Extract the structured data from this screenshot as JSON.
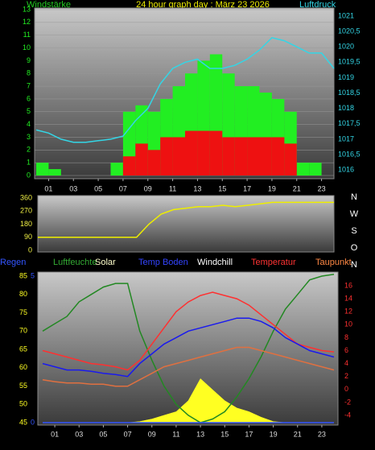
{
  "chart_data": [
    {
      "type": "weather-panel",
      "title": "24 hour graph day : März 23 2026",
      "ylabel": "Windstärke",
      "y2label": "Luftdruck",
      "xlim": [
        0,
        24
      ],
      "xticks": [
        {
          "value": 1,
          "label": "01"
        },
        {
          "value": 3,
          "label": "03"
        },
        {
          "value": 5,
          "label": "05"
        },
        {
          "value": 7,
          "label": "07"
        },
        {
          "value": 9,
          "label": "09"
        },
        {
          "value": 11,
          "label": "11"
        },
        {
          "value": 13,
          "label": "13"
        },
        {
          "value": 15,
          "label": "15"
        },
        {
          "value": 17,
          "label": "17"
        },
        {
          "value": 19,
          "label": "19"
        },
        {
          "value": 21,
          "label": "21"
        },
        {
          "value": 23,
          "label": "23"
        }
      ],
      "ylim": [
        0,
        13
      ],
      "yticks": [
        0,
        1,
        2,
        3,
        4,
        5,
        6,
        7,
        8,
        9,
        10,
        11,
        12,
        13
      ],
      "y2lim": [
        1015.82,
        1021.21
      ],
      "y2ticks": [
        1016,
        {
          "value": 1016.5,
          "label": "1016,5"
        },
        1017,
        {
          "value": 1017.5,
          "label": "1017,5"
        },
        1018,
        {
          "value": 1018.5,
          "label": "1018,5"
        },
        1019,
        {
          "value": 1019.5,
          "label": "1019,5"
        },
        1020,
        {
          "value": 1020.5,
          "label": "1020,5"
        },
        1021
      ],
      "grid": true,
      "series": [
        {
          "style": "bar",
          "color": "#22ee22",
          "x": [
            0,
            1,
            2,
            3,
            4,
            5,
            6,
            7,
            8,
            9,
            10,
            11,
            12,
            13,
            14,
            15,
            16,
            17,
            18,
            19,
            20,
            21,
            22,
            23
          ],
          "values": [
            1,
            0.5,
            0,
            0,
            0,
            0,
            1,
            5,
            5.5,
            5,
            6,
            7,
            8,
            9,
            9.5,
            8,
            7,
            7,
            6.5,
            6,
            5,
            1,
            1,
            0
          ]
        },
        {
          "style": "bar",
          "color": "#ee1111",
          "x": [
            0,
            1,
            2,
            3,
            4,
            5,
            6,
            7,
            8,
            9,
            10,
            11,
            12,
            13,
            14,
            15,
            16,
            17,
            18,
            19,
            20,
            21,
            22,
            23
          ],
          "values": [
            0,
            0,
            0,
            0,
            0,
            0,
            0,
            1.5,
            2.5,
            2,
            3,
            3,
            3.5,
            3.5,
            3.5,
            3,
            3,
            3,
            3,
            3,
            2.5,
            0,
            0,
            0
          ]
        },
        {
          "style": "line",
          "axis": "y2",
          "color": "#33d6e6",
          "x": [
            0,
            1,
            2,
            3,
            4,
            5,
            6,
            7,
            8,
            9,
            10,
            11,
            12,
            13,
            14,
            15,
            16,
            17,
            18,
            19,
            20,
            21,
            22,
            23,
            24
          ],
          "values": [
            1017.3,
            1017.2,
            1017.0,
            1016.9,
            1016.9,
            1016.95,
            1017.0,
            1017.1,
            1017.6,
            1018.0,
            1018.8,
            1019.3,
            1019.5,
            1019.6,
            1019.3,
            1019.3,
            1019.4,
            1019.6,
            1019.9,
            1020.3,
            1020.2,
            1020.0,
            1019.8,
            1019.8,
            1019.3
          ]
        }
      ]
    },
    {
      "type": "weather-panel",
      "xlim": [
        0,
        24
      ],
      "ylim": [
        0,
        360
      ],
      "yticks": [
        0,
        90,
        180,
        270,
        360
      ],
      "direction_labels": [
        "N",
        "W",
        "S",
        "O",
        "N"
      ],
      "series": [
        {
          "style": "line",
          "color": "#eeee00",
          "x": [
            0,
            1,
            2,
            3,
            4,
            5,
            6,
            7,
            8,
            9,
            10,
            11,
            12,
            13,
            14,
            15,
            16,
            17,
            18,
            19,
            20,
            21,
            22,
            23,
            24
          ],
          "values": [
            90,
            90,
            90,
            90,
            90,
            90,
            90,
            90,
            90,
            180,
            250,
            280,
            290,
            300,
            300,
            310,
            300,
            310,
            320,
            330,
            330,
            330,
            330,
            330,
            330
          ]
        }
      ]
    },
    {
      "type": "weather-panel",
      "xlim": [
        0,
        24
      ],
      "xticks": [
        {
          "value": 1,
          "label": "01"
        },
        {
          "value": 3,
          "label": "03"
        },
        {
          "value": 5,
          "label": "05"
        },
        {
          "value": 7,
          "label": "07"
        },
        {
          "value": 9,
          "label": "09"
        },
        {
          "value": 11,
          "label": "11"
        },
        {
          "value": 13,
          "label": "13"
        },
        {
          "value": 15,
          "label": "15"
        },
        {
          "value": 17,
          "label": "17"
        },
        {
          "value": 19,
          "label": "19"
        },
        {
          "value": 21,
          "label": "21"
        },
        {
          "value": 23,
          "label": "23"
        }
      ],
      "ylim": [
        45,
        85
      ],
      "yticks": [
        45,
        50,
        55,
        60,
        65,
        70,
        75,
        80,
        85
      ],
      "y2lim": [
        -5.12,
        17.49
      ],
      "y2ticks": [
        -4,
        -2,
        0,
        2,
        4,
        6,
        8,
        10,
        12,
        14,
        16
      ],
      "y3lim": [
        0,
        5
      ],
      "y3ticks": [
        0,
        5
      ],
      "legend": [
        {
          "label": "Regen",
          "color": "#3355ff"
        },
        {
          "label": "Luftfeuchte",
          "color": "#33aa33"
        },
        {
          "label": "Solar",
          "color": "#ffffcc"
        },
        {
          "label": "Temp Boden",
          "color": "#3344ff"
        },
        {
          "label": "Windchill",
          "color": "#ffffff"
        },
        {
          "label": "Temperatur",
          "color": "#ff3333"
        },
        {
          "label": "Taupunkt",
          "color": "#ff8844"
        }
      ],
      "series": [
        {
          "style": "area",
          "color": "#ffff22",
          "x": [
            0,
            1,
            2,
            3,
            4,
            5,
            6,
            7,
            8,
            9,
            10,
            11,
            12,
            13,
            14,
            15,
            16,
            17,
            18,
            19,
            20,
            21,
            22,
            23,
            24
          ],
          "values": [
            45,
            45,
            45,
            45,
            45,
            45,
            45,
            45,
            45.3,
            46,
            47,
            48,
            51,
            57,
            54,
            51,
            49,
            48,
            46.5,
            45.3,
            45,
            45,
            45,
            45,
            45
          ]
        },
        {
          "style": "line",
          "color": "#228822",
          "x": [
            0,
            1,
            2,
            3,
            4,
            5,
            6,
            7,
            8,
            9,
            10,
            11,
            12,
            13,
            14,
            15,
            16,
            17,
            18,
            19,
            20,
            21,
            22,
            23,
            24
          ],
          "values": [
            70,
            72,
            74,
            78,
            80,
            82,
            83,
            83,
            70,
            62,
            55,
            50,
            47,
            45,
            46,
            48,
            52,
            57,
            63,
            70,
            76,
            80,
            84,
            85,
            85.5
          ]
        },
        {
          "style": "line",
          "axis": "y2",
          "color": "#ff3030",
          "x": [
            0,
            1,
            2,
            3,
            4,
            5,
            6,
            7,
            8,
            9,
            10,
            11,
            12,
            13,
            14,
            15,
            16,
            17,
            18,
            19,
            20,
            21,
            22,
            23,
            24
          ],
          "values": [
            6,
            5.5,
            5,
            4.5,
            4,
            3.8,
            3.5,
            3,
            4.5,
            7,
            9.5,
            12,
            13.5,
            14.5,
            15,
            14.5,
            14,
            13,
            11.5,
            10,
            8.5,
            7,
            6.5,
            6,
            5.8
          ]
        },
        {
          "style": "line",
          "axis": "y2",
          "color": "#1a1aee",
          "x": [
            0,
            1,
            2,
            3,
            4,
            5,
            6,
            7,
            8,
            9,
            10,
            11,
            12,
            13,
            14,
            15,
            16,
            17,
            18,
            19,
            20,
            21,
            22,
            23,
            24
          ],
          "values": [
            4,
            3.5,
            3,
            3,
            2.8,
            2.5,
            2.3,
            2,
            4,
            5.5,
            7,
            8,
            9,
            9.5,
            10,
            10.5,
            11,
            11,
            10.5,
            9.5,
            8,
            7,
            6,
            5.5,
            5
          ]
        },
        {
          "style": "line",
          "axis": "y2",
          "color": "#e07040",
          "x": [
            0,
            1,
            2,
            3,
            4,
            5,
            6,
            7,
            8,
            9,
            10,
            11,
            12,
            13,
            14,
            15,
            16,
            17,
            18,
            19,
            20,
            21,
            22,
            23,
            24
          ],
          "values": [
            1.5,
            1.2,
            1,
            1,
            0.8,
            0.8,
            0.5,
            0.5,
            1.5,
            2.5,
            3.5,
            4,
            4.5,
            5,
            5.5,
            6,
            6.5,
            6.5,
            6,
            5.5,
            5,
            4.5,
            4,
            3.5,
            3
          ]
        },
        {
          "style": "line",
          "axis": "y3",
          "color": "#3355ff",
          "x": [
            0,
            24
          ],
          "values": [
            0,
            0
          ]
        }
      ]
    }
  ]
}
